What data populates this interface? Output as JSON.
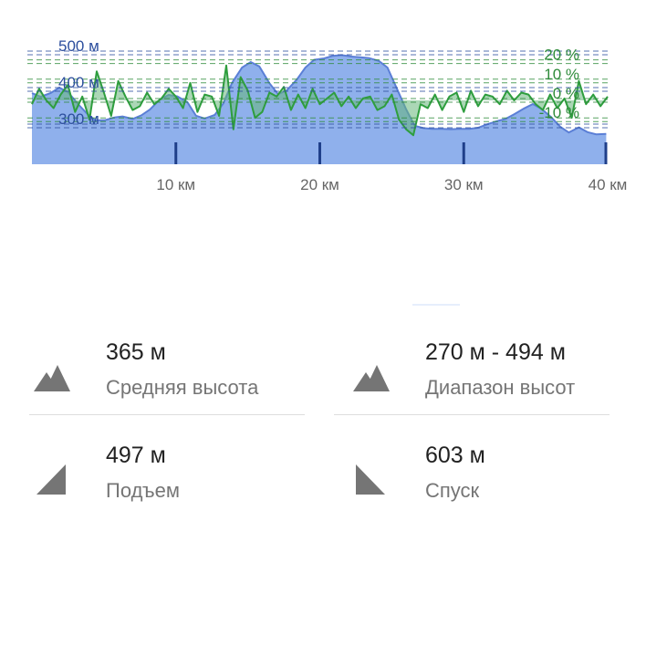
{
  "colors": {
    "elevation_fill": "#8fb0ec",
    "elevation_line": "#5b7fd6",
    "slope_line": "#2e9e3e",
    "slope_fill": "#66b67a",
    "elevation_text": "#2d4f9e",
    "slope_text": "#2e8b3a",
    "grid_blue": "#2d4f9e",
    "grid_green": "#2e8b3a",
    "value_text": "#222222",
    "label_text": "#757575",
    "icon": "#757575"
  },
  "chart_data": {
    "type": "area",
    "x_unit": "км",
    "x_range": [
      0,
      40
    ],
    "x_ticks": [
      {
        "value": 10,
        "label": "10 км"
      },
      {
        "value": 20,
        "label": "20 км"
      },
      {
        "value": 30,
        "label": "30 км"
      },
      {
        "value": 40,
        "label": "40 км"
      }
    ],
    "elevation_axis": {
      "range": [
        195,
        545
      ],
      "ticks": [
        {
          "value": 500,
          "label": "500 м"
        },
        {
          "value": 400,
          "label": "400 м"
        },
        {
          "value": 300,
          "label": "300 м"
        }
      ]
    },
    "slope_axis": {
      "range": [
        -33,
        33
      ],
      "ticks": [
        {
          "value": 20,
          "label": "20 %"
        },
        {
          "value": 10,
          "label": "10 %"
        },
        {
          "value": 0,
          "label": "0 %"
        },
        {
          "value": -10,
          "label": "-10 %"
        }
      ]
    },
    "series": [
      {
        "kind": "elevation",
        "x": [
          0,
          0.6,
          1.3,
          1.9,
          2.5,
          3.2,
          3.8,
          4.4,
          5.1,
          5.7,
          6.3,
          7.0,
          7.6,
          8.2,
          8.9,
          9.5,
          10.1,
          10.8,
          11.4,
          12.0,
          12.7,
          13.3,
          13.9,
          14.6,
          15.2,
          15.8,
          16.5,
          17.1,
          17.7,
          18.4,
          19.0,
          19.6,
          20.3,
          20.9,
          21.5,
          22.2,
          22.8,
          23.4,
          24.1,
          24.7,
          25.3,
          26.0,
          26.6,
          27.2,
          27.8,
          28.5,
          29.1,
          29.7,
          30.4,
          31.0,
          31.6,
          32.3,
          32.9,
          33.5,
          34.2,
          34.8,
          35.4,
          36.1,
          36.7,
          37.3,
          38.0,
          38.6,
          39.2,
          39.9
        ],
        "values": [
          390,
          380,
          390,
          405,
          393,
          360,
          335,
          315,
          316,
          323,
          326,
          319,
          329,
          345,
          373,
          385,
          381,
          365,
          328,
          320,
          330,
          362,
          418,
          460,
          475,
          463,
          417,
          387,
          397,
          427,
          460,
          481,
          485,
          492,
          494,
          490,
          488,
          486,
          478,
          460,
          407,
          345,
          300,
          294,
          292,
          292,
          291,
          292,
          292,
          295,
          304,
          313,
          319,
          332,
          348,
          360,
          347,
          323,
          298,
          282,
          296,
          283,
          277,
          278
        ]
      },
      {
        "kind": "slope",
        "x": [
          0.0,
          0.5,
          1.0,
          1.5,
          2.0,
          2.5,
          3.0,
          3.5,
          4.0,
          4.5,
          5.0,
          5.5,
          6.0,
          6.5,
          7.0,
          7.5,
          8.0,
          8.5,
          9.0,
          9.5,
          10.0,
          10.5,
          11.0,
          11.5,
          12.0,
          12.5,
          13.0,
          13.5,
          14.0,
          14.5,
          15.0,
          15.5,
          16.0,
          16.5,
          17.0,
          17.5,
          18.0,
          18.5,
          19.0,
          19.5,
          20.0,
          20.5,
          21.0,
          21.5,
          22.0,
          22.5,
          23.0,
          23.5,
          24.0,
          24.5,
          25.0,
          25.5,
          26.0,
          26.5,
          27.0,
          27.5,
          28.0,
          28.5,
          29.0,
          29.5,
          30.0,
          30.5,
          31.0,
          31.5,
          32.0,
          32.5,
          33.0,
          33.5,
          34.0,
          34.5,
          35.0,
          35.5,
          36.0,
          36.5,
          37.0,
          37.5,
          38.0,
          38.5,
          39.0,
          39.5,
          40.0
        ],
        "values": [
          -2,
          6,
          0,
          -4,
          3,
          8,
          -6,
          2,
          -10,
          15,
          4,
          -8,
          10,
          2,
          -5,
          -3,
          4,
          -2,
          1,
          6,
          2,
          -4,
          9,
          -6,
          3,
          2,
          -8,
          18,
          -15,
          12,
          5,
          -9,
          -6,
          4,
          2,
          7,
          -5,
          3,
          -4,
          6,
          -2,
          1,
          4,
          -3,
          2,
          -4,
          1,
          2,
          -5,
          -3,
          3,
          -10,
          -15,
          -18,
          -2,
          -4,
          3,
          -5,
          2,
          4,
          -6,
          5,
          -3,
          3,
          2,
          -2,
          5,
          0,
          4,
          3,
          -2,
          -5,
          3,
          -4,
          1,
          -9,
          10,
          -2,
          3,
          -3,
          2
        ]
      }
    ],
    "grid": "dashed"
  },
  "stats": [
    {
      "value": "365 м",
      "label": "Средняя высота",
      "icon": "mountains-icon"
    },
    {
      "value": "270 м - 494 м",
      "label": "Диапазон высот",
      "icon": "mountains-icon"
    },
    {
      "value": "497 м",
      "label": "Подъем",
      "icon": "uphill-icon"
    },
    {
      "value": "603 м",
      "label": "Спуск",
      "icon": "downhill-icon"
    }
  ]
}
